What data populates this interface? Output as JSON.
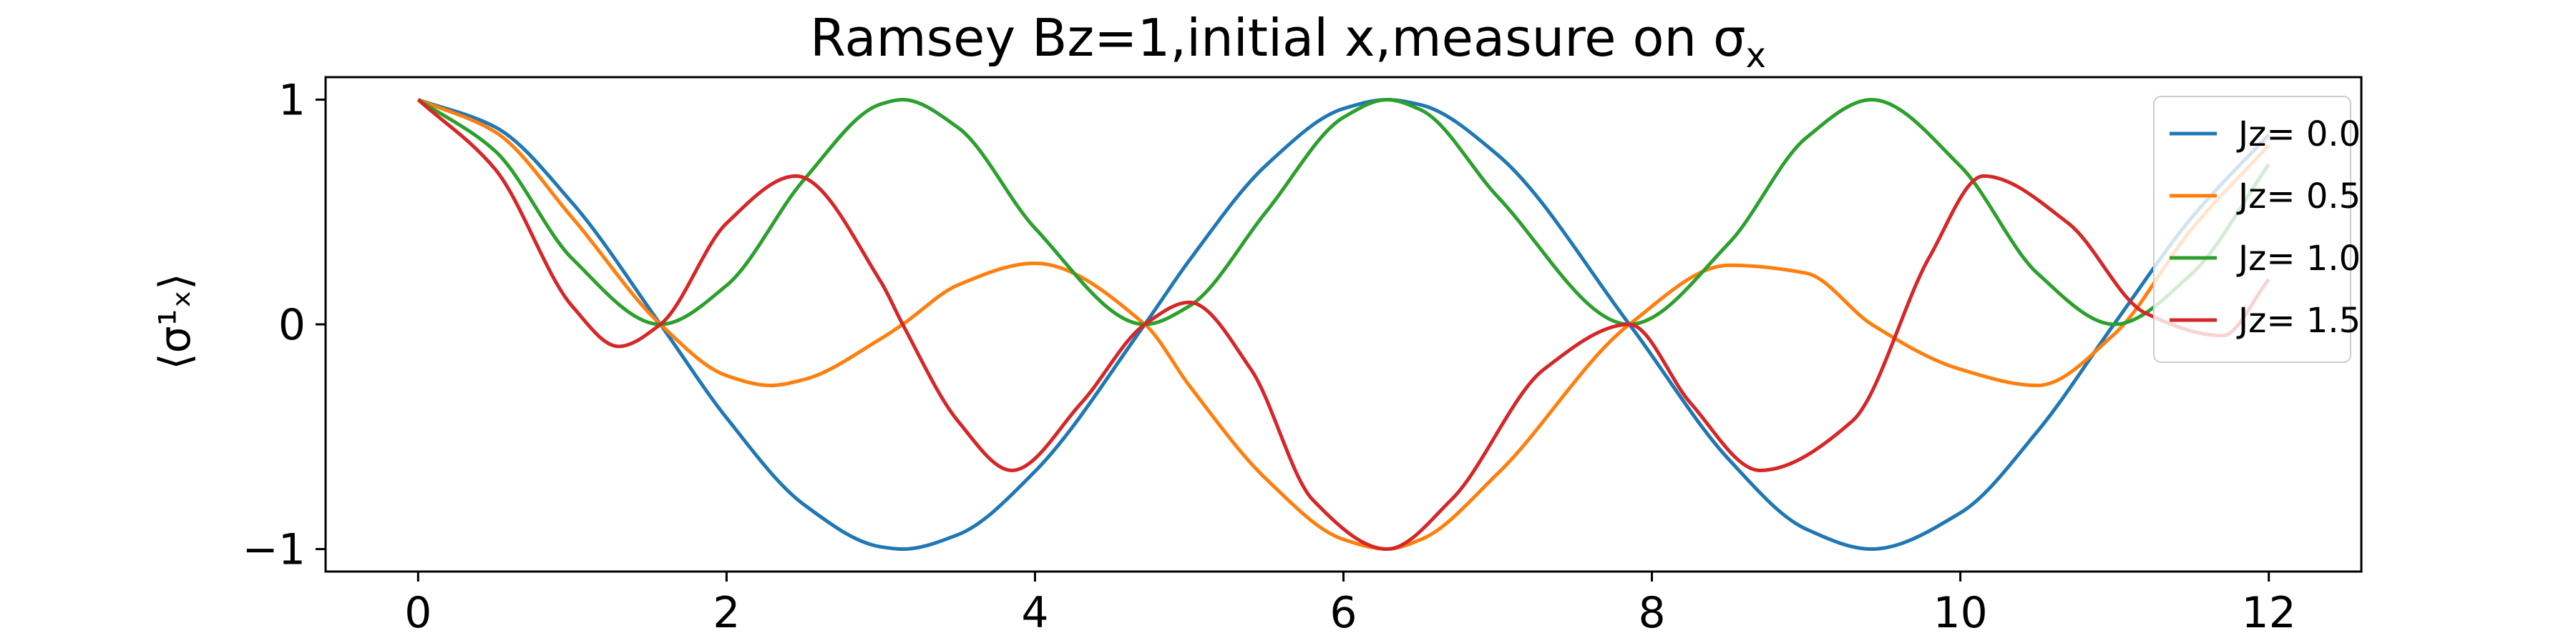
{
  "chart_data": {
    "type": "line",
    "title": "Ramsey Bz=1,initial x,measure on σ",
    "title_subscript": "x",
    "xlabel": "",
    "ylabel": "⟨σ¹ₓ⟩",
    "xlim": [
      -0.6,
      12.6
    ],
    "ylim": [
      -1.1,
      1.1
    ],
    "xticks": [
      0,
      2,
      4,
      6,
      8,
      10,
      12
    ],
    "xtick_labels": [
      "0",
      "2",
      "4",
      "6",
      "8",
      "10",
      "12"
    ],
    "yticks": [
      -1,
      0,
      1
    ],
    "ytick_labels": [
      "−1",
      "0",
      "1"
    ],
    "grid": false,
    "legend_position": "top-right",
    "series": [
      {
        "name": "Jz= 0.0",
        "color": "#1f77b4",
        "x": [
          0,
          0.5,
          1.0,
          1.571,
          2.0,
          2.5,
          3.0,
          3.142,
          3.5,
          4.0,
          4.712,
          5.0,
          5.5,
          6.0,
          6.283,
          6.5,
          7.0,
          7.854,
          8.5,
          9.0,
          9.425,
          10.0,
          10.5,
          11.0,
          11.5,
          12.0
        ],
        "y": [
          1.0,
          0.878,
          0.54,
          0.0,
          -0.416,
          -0.801,
          -0.99,
          -1.0,
          -0.936,
          -0.654,
          0.0,
          0.284,
          0.709,
          0.96,
          1.0,
          0.977,
          0.754,
          0.0,
          -0.602,
          -0.911,
          -1.0,
          -0.839,
          -0.476,
          0.004,
          0.475,
          0.844
        ]
      },
      {
        "name": "Jz= 0.5",
        "color": "#ff7f0e",
        "x": [
          0,
          0.5,
          1.0,
          1.571,
          2.0,
          2.284,
          2.5,
          3.0,
          3.142,
          3.5,
          4.0,
          4.712,
          5.0,
          5.5,
          6.0,
          6.283,
          6.5,
          7.0,
          7.854,
          8.5,
          9.0,
          9.425,
          10.0,
          10.5,
          11.0,
          11.5,
          12.0
        ],
        "y": [
          1.0,
          0.856,
          0.474,
          0.0,
          -0.228,
          -0.272,
          -0.246,
          -0.064,
          0.0,
          0.175,
          0.272,
          0.0,
          -0.272,
          -0.689,
          -0.957,
          -1.0,
          -0.958,
          -0.664,
          0.0,
          0.263,
          0.228,
          0.0,
          -0.2,
          -0.272,
          -0.042,
          0.424,
          0.797
        ]
      },
      {
        "name": "Jz= 1.0",
        "color": "#2ca02c",
        "x": [
          0,
          0.5,
          1.0,
          1.571,
          2.0,
          2.5,
          3.0,
          3.142,
          3.5,
          4.0,
          4.712,
          5.0,
          5.5,
          6.0,
          6.283,
          6.5,
          7.0,
          7.854,
          8.5,
          9.0,
          9.425,
          10.0,
          10.5,
          11.0,
          11.5,
          12.0
        ],
        "y": [
          1.0,
          0.771,
          0.292,
          0.0,
          0.173,
          0.642,
          0.98,
          1.0,
          0.876,
          0.428,
          0.0,
          0.081,
          0.502,
          0.921,
          1.0,
          0.955,
          0.568,
          0.0,
          0.362,
          0.83,
          1.0,
          0.704,
          0.227,
          0.0,
          0.225,
          0.712
        ]
      },
      {
        "name": "Jz= 1.5",
        "color": "#d62728",
        "x": [
          0,
          0.5,
          1.0,
          1.3,
          1.571,
          2.0,
          2.45,
          3.0,
          3.142,
          3.5,
          3.85,
          4.3,
          4.712,
          5.0,
          5.4,
          5.8,
          6.283,
          6.7,
          7.3,
          7.854,
          8.25,
          8.7,
          9.3,
          9.8,
          10.15,
          10.7,
          11.2,
          11.7,
          12.0
        ],
        "y": [
          1.0,
          0.69,
          0.08,
          -0.098,
          0.0,
          0.45,
          0.66,
          0.19,
          0.0,
          -0.43,
          -0.65,
          -0.35,
          0.0,
          0.098,
          -0.2,
          -0.78,
          -1.0,
          -0.78,
          -0.2,
          0.0,
          -0.35,
          -0.65,
          -0.43,
          0.3,
          0.66,
          0.45,
          0.05,
          -0.05,
          0.2
        ]
      }
    ]
  }
}
